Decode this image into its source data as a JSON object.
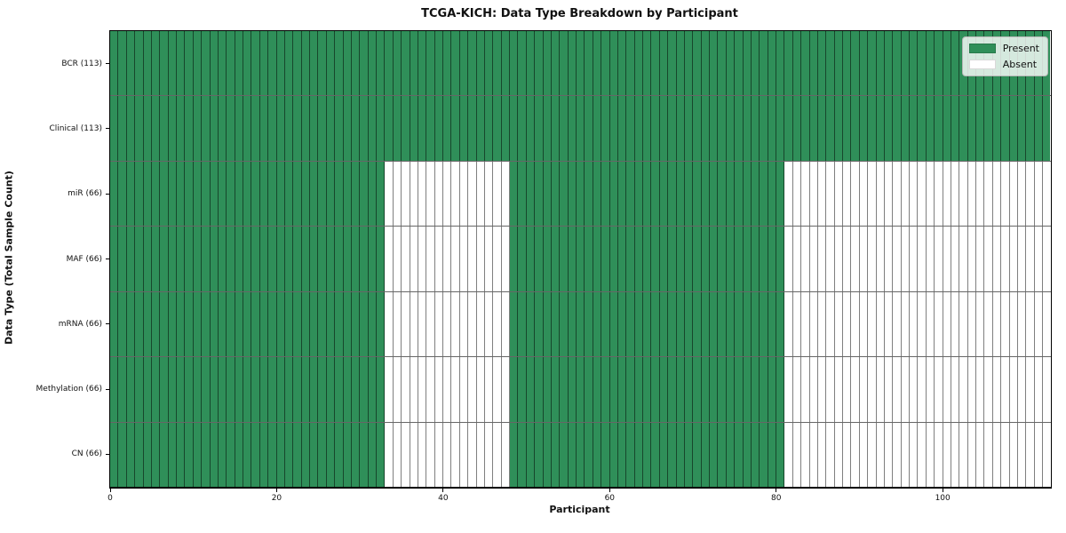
{
  "chart_data": {
    "type": "heatmap",
    "title": "TCGA-KICH: Data Type Breakdown by Participant",
    "xlabel": "Participant",
    "ylabel": "Data Type (Total Sample Count)",
    "n_participants": 113,
    "x_ticks": [
      0,
      20,
      40,
      60,
      80,
      100
    ],
    "xlim": [
      0,
      113
    ],
    "grid": "per-cell black grid lines",
    "legend_position": "upper right",
    "colors": {
      "present": "#2f8f59",
      "absent": "#ffffff",
      "cell_border": "rgba(0,0,0,0.5)",
      "axis": "#000000"
    },
    "legend": [
      {
        "label": "Present",
        "color": "#2f8f59"
      },
      {
        "label": "Absent",
        "color": "#ffffff"
      }
    ],
    "rows": [
      {
        "label": "BCR (113)",
        "count": 113,
        "present_ranges": [
          [
            0,
            113
          ]
        ]
      },
      {
        "label": "Clinical (113)",
        "count": 113,
        "present_ranges": [
          [
            0,
            113
          ]
        ]
      },
      {
        "label": "miR (66)",
        "count": 66,
        "present_ranges": [
          [
            0,
            33
          ],
          [
            48,
            81
          ]
        ]
      },
      {
        "label": "MAF (66)",
        "count": 66,
        "present_ranges": [
          [
            0,
            33
          ],
          [
            48,
            81
          ]
        ]
      },
      {
        "label": "mRNA (66)",
        "count": 66,
        "present_ranges": [
          [
            0,
            33
          ],
          [
            48,
            81
          ]
        ]
      },
      {
        "label": "Methylation (66)",
        "count": 66,
        "present_ranges": [
          [
            0,
            33
          ],
          [
            48,
            81
          ]
        ]
      },
      {
        "label": "CN (66)",
        "count": 66,
        "present_ranges": [
          [
            0,
            33
          ],
          [
            48,
            81
          ]
        ]
      }
    ]
  }
}
